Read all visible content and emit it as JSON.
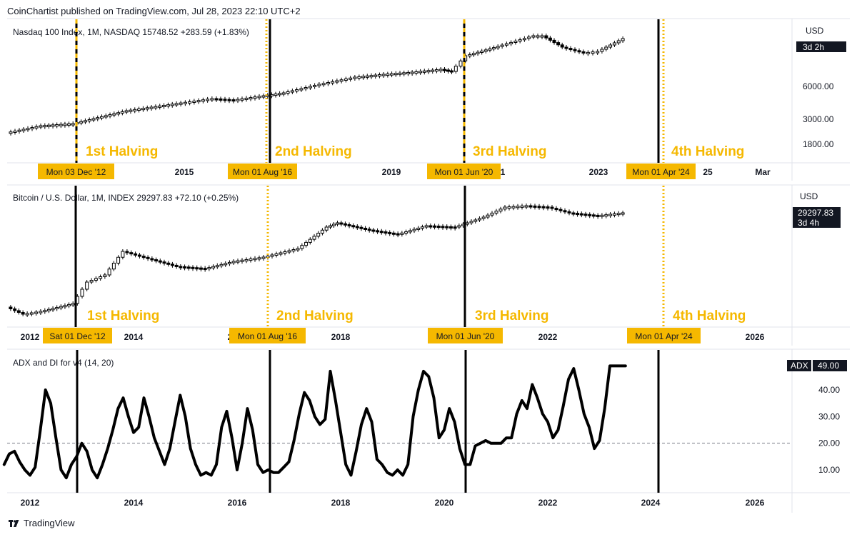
{
  "header": {
    "published": "CoinChartist published on TradingView.com, Jul 28, 2023 22:10 UTC+2"
  },
  "footer": {
    "brand": "TradingView"
  },
  "colors": {
    "halving": "#f5b800",
    "line": "#000000",
    "grid": "#e0e3eb",
    "dateTagText": "#131722"
  },
  "chart_data": [
    {
      "type": "candlestick",
      "legend": "Nasdaq 100 Index, 1M, NASDAQ  15748.52  +283.59 (+1.83%)",
      "currency": "USD",
      "price_tag": "3d 2h",
      "scale": "log",
      "y_ticks": [
        "6000.00",
        "3000.00",
        "1800.00"
      ],
      "x_ticks": [
        "2015",
        "2019",
        "2023",
        "Mar"
      ],
      "x_ticks_partial": [
        "1",
        "25"
      ],
      "halvings": [
        {
          "label": "1st Halving",
          "date": "Mon 03 Dec '12"
        },
        {
          "label": "2nd Halving",
          "date": "Mon 01 Aug '16"
        },
        {
          "label": "3rd Halving",
          "date": "Mon 01 Jun '20"
        },
        {
          "label": "4th Halving",
          "date": "Mon 01 Apr '24"
        }
      ]
    },
    {
      "type": "candlestick",
      "legend": "Bitcoin / U.S. Dollar, 1M, INDEX  29297.83  +72.10 (+0.25%)",
      "currency": "USD",
      "price_tag": "29297.83",
      "price_tag_sub": "3d 4h",
      "scale": "log",
      "x_ticks": [
        "2012",
        "2014",
        "2018",
        "2022",
        "2026"
      ],
      "x_ticks_partial": [
        "2"
      ],
      "halvings": [
        {
          "label": "1st Halving",
          "date": "Sat 01 Dec '12"
        },
        {
          "label": "2nd Halving",
          "date": "Mon 01 Aug '16"
        },
        {
          "label": "3rd Halving",
          "date": "Mon 01 Jun '20"
        },
        {
          "label": "4th Halving",
          "date": "Mon 01 Apr '24"
        }
      ]
    },
    {
      "type": "line",
      "legend": "ADX and DI for v4 (14, 20)",
      "badge_label": "ADX",
      "badge_value": "49.00",
      "y_ticks": [
        "40.00",
        "30.00",
        "20.00",
        "10.00"
      ],
      "threshold": 20,
      "x_ticks": [
        "2012",
        "2014",
        "2016",
        "2018",
        "2020",
        "2022",
        "2024",
        "2026"
      ],
      "series": [
        {
          "x": [
            2011.5,
            2011.6,
            2011.7,
            2011.8,
            2011.9,
            2012.0,
            2012.1,
            2012.2,
            2012.3,
            2012.4,
            2012.5,
            2012.6,
            2012.7,
            2012.8,
            2012.9,
            2013.0,
            2013.1,
            2013.2,
            2013.3,
            2013.4,
            2013.5,
            2013.6,
            2013.7,
            2013.8,
            2013.9,
            2014.0,
            2014.1,
            2014.2,
            2014.3,
            2014.4,
            2014.5,
            2014.6,
            2014.7,
            2014.8,
            2014.9,
            2015.0,
            2015.1,
            2015.2,
            2015.3,
            2015.4,
            2015.5,
            2015.6,
            2015.7,
            2015.8,
            2015.9,
            2016.0,
            2016.1,
            2016.2,
            2016.3,
            2016.4,
            2016.5,
            2016.6,
            2016.7,
            2016.8,
            2016.9,
            2017.0,
            2017.1,
            2017.2,
            2017.3,
            2017.4,
            2017.5,
            2017.6,
            2017.7,
            2017.8,
            2017.9,
            2018.0,
            2018.1,
            2018.2,
            2018.3,
            2018.4,
            2018.5,
            2018.6,
            2018.7,
            2018.8,
            2018.9,
            2019.0,
            2019.1,
            2019.2,
            2019.3,
            2019.4,
            2019.5,
            2019.6,
            2019.7,
            2019.8,
            2019.9,
            2020.0,
            2020.1,
            2020.2,
            2020.3,
            2020.4,
            2020.5,
            2020.6,
            2020.7,
            2020.8,
            2020.9,
            2021.0,
            2021.1,
            2021.2,
            2021.3,
            2021.4,
            2021.5,
            2021.6,
            2021.7,
            2021.8,
            2021.9,
            2022.0,
            2022.1,
            2022.2,
            2022.3,
            2022.4,
            2022.5,
            2022.6,
            2022.7,
            2022.8,
            2022.9,
            2023.0,
            2023.1,
            2023.2,
            2023.3,
            2023.4,
            2023.5
          ],
          "y": [
            12,
            16,
            17,
            13,
            10,
            8,
            11,
            25,
            40,
            35,
            22,
            10,
            7,
            12,
            15,
            20,
            17,
            10,
            7,
            12,
            18,
            25,
            33,
            37,
            30,
            24,
            26,
            37,
            30,
            22,
            17,
            12,
            18,
            28,
            38,
            30,
            18,
            12,
            8,
            9,
            8,
            12,
            26,
            32,
            22,
            10,
            20,
            33,
            25,
            12,
            9,
            10,
            9,
            9,
            11,
            13,
            21,
            31,
            39,
            36,
            30,
            27,
            29,
            47,
            36,
            24,
            12,
            8,
            17,
            27,
            33,
            28,
            14,
            12,
            9,
            8,
            10,
            8,
            12,
            30,
            40,
            47,
            45,
            37,
            22,
            25,
            33,
            28,
            18,
            12,
            12,
            19,
            20,
            21,
            20,
            20,
            20,
            22,
            22,
            31,
            36,
            33,
            42,
            37,
            31,
            28,
            22,
            25,
            34,
            44,
            48,
            40,
            31,
            26,
            18,
            21,
            33,
            49,
            49,
            49,
            49
          ]
        }
      ]
    }
  ]
}
